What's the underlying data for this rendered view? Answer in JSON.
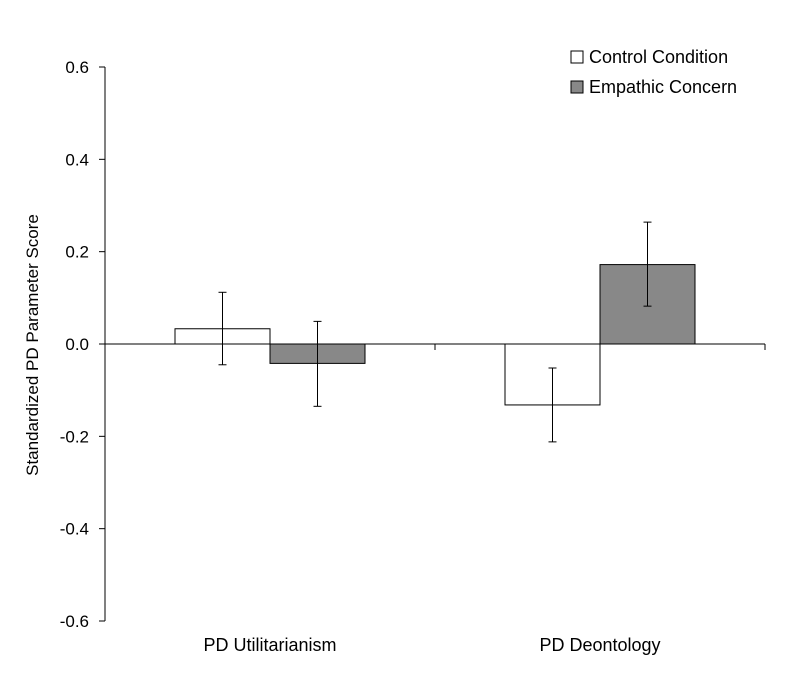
{
  "chart_data": {
    "type": "bar",
    "title": "",
    "xlabel": "",
    "ylabel": "Standardized PD Parameter Score",
    "ylim": [
      -0.6,
      0.6
    ],
    "yticks": [
      0.6,
      0.4,
      0.2,
      0.0,
      -0.2,
      -0.4,
      -0.6
    ],
    "ytick_labels": [
      "0.6",
      "0.4",
      "0.2",
      "0.0",
      "-0.2",
      "-0.4",
      "-0.6"
    ],
    "categories": [
      "PD Utilitarianism",
      "PD Deontology"
    ],
    "series": [
      {
        "name": "Control Condition",
        "color": "#ffffff",
        "values": [
          0.033,
          -0.132
        ],
        "error_low": [
          -0.045,
          -0.212
        ],
        "error_high": [
          0.112,
          -0.052
        ]
      },
      {
        "name": "Empathic Concern",
        "color": "#888888",
        "values": [
          -0.042,
          0.172
        ],
        "error_low": [
          -0.135,
          0.082
        ],
        "error_high": [
          0.049,
          0.264
        ]
      }
    ],
    "legend_position": "top-right",
    "grid": false
  }
}
